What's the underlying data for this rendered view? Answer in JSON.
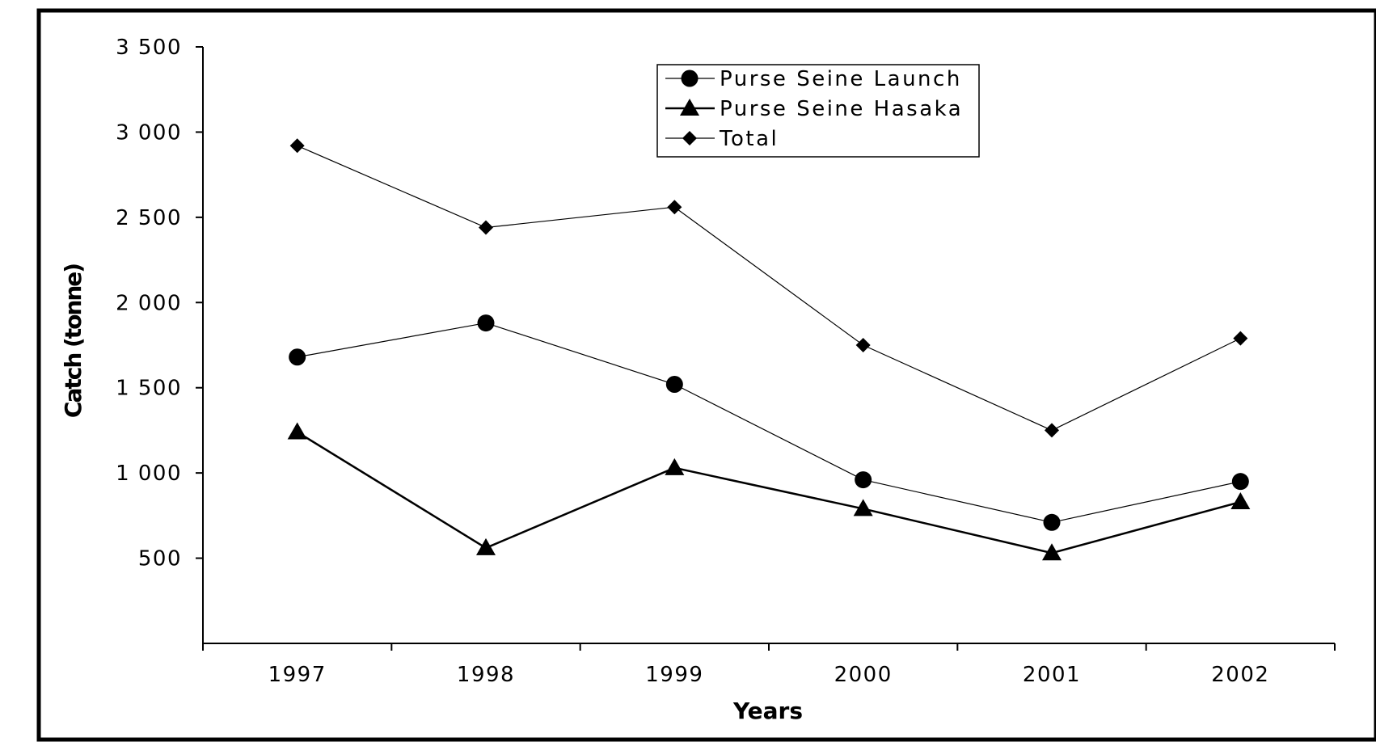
{
  "chart_data": {
    "type": "line",
    "title": "",
    "xlabel": "Years",
    "ylabel": "Catch (tonne)",
    "x": [
      "1997",
      "1998",
      "1999",
      "2000",
      "2001",
      "2002"
    ],
    "ylim": [
      0,
      3500
    ],
    "yticks": [
      500,
      1000,
      1500,
      2000,
      2500,
      3000,
      3500
    ],
    "ytick_labels": [
      "500",
      "1 000",
      "1 500",
      "2 000",
      "2 500",
      "3 000",
      "3 500"
    ],
    "grid": false,
    "legend_position": "top-center",
    "series": [
      {
        "name": "Purse Seine Launch",
        "marker": "circle",
        "values": [
          1680,
          1880,
          1520,
          960,
          710,
          950
        ]
      },
      {
        "name": "Purse Seine Hasaka",
        "marker": "triangle",
        "values": [
          1240,
          560,
          1030,
          790,
          530,
          830
        ]
      },
      {
        "name": "Total",
        "marker": "diamond",
        "values": [
          2920,
          2440,
          2560,
          1750,
          1250,
          1790
        ]
      }
    ],
    "colors": {
      "line": "#000000",
      "background": "#ffffff",
      "frame": "#000000"
    }
  }
}
